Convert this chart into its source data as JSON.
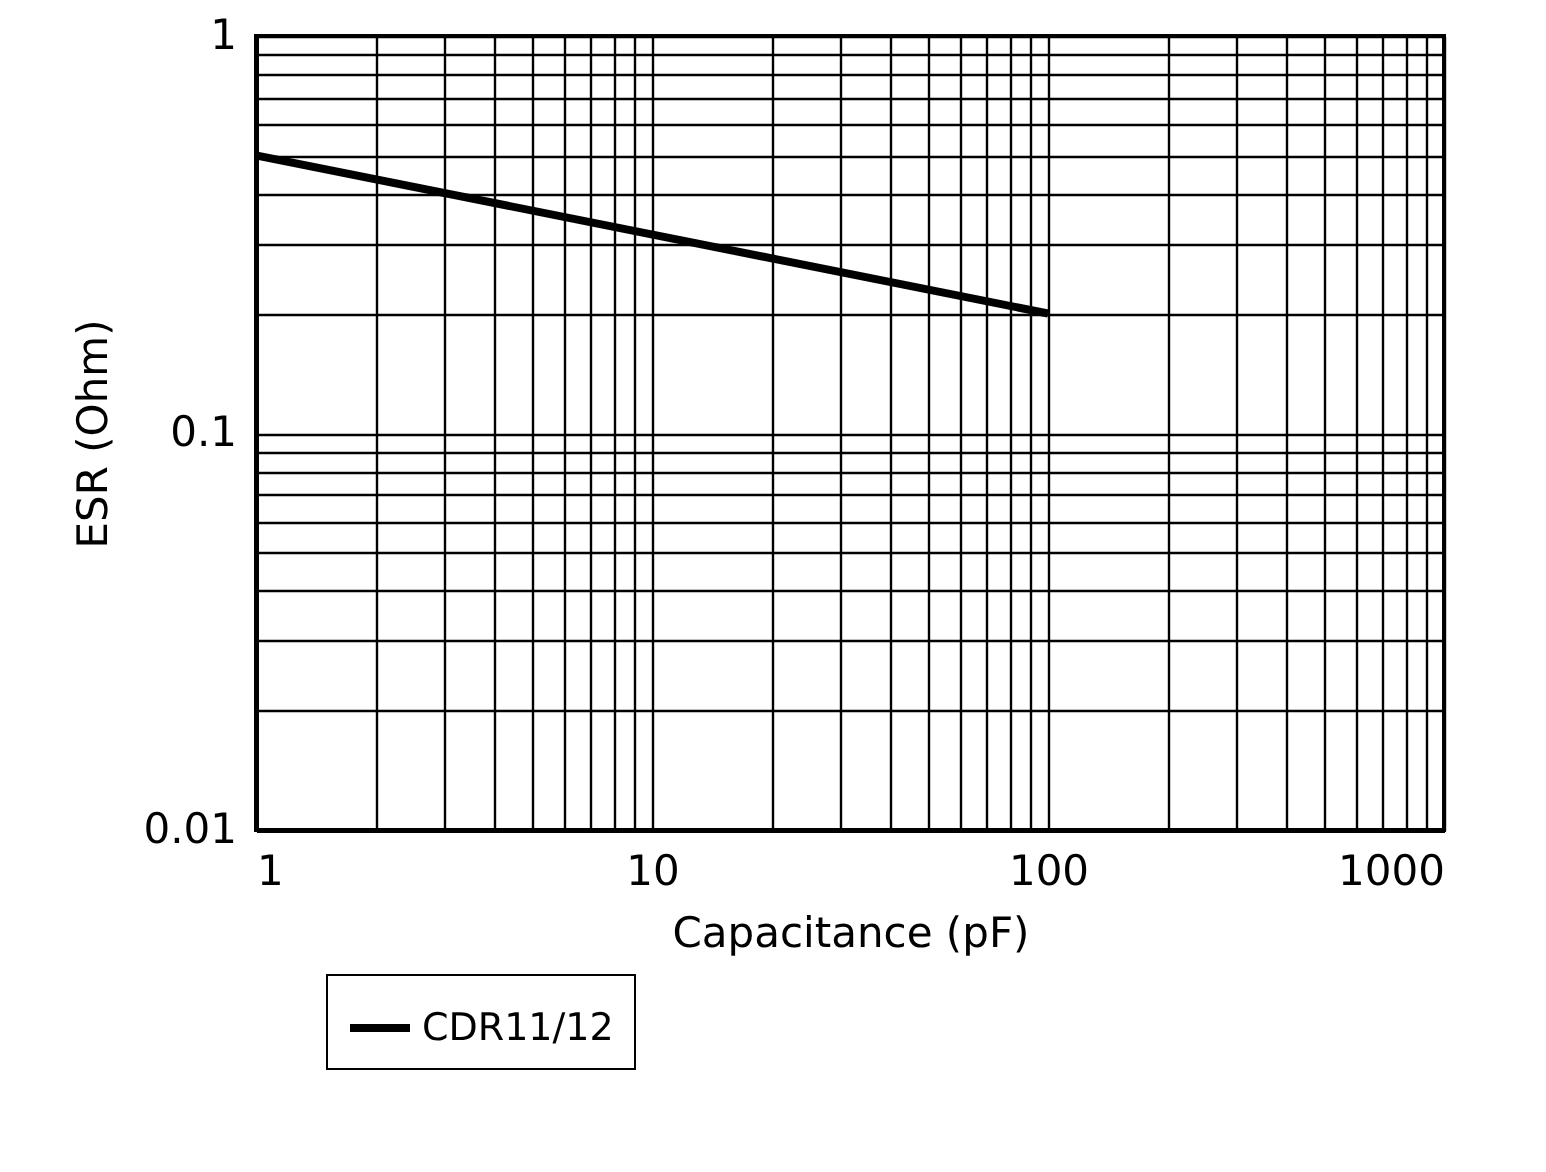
{
  "chart_data": {
    "type": "line",
    "xlabel": "Capacitance (pF)",
    "ylabel": "ESR (Ohm)",
    "x": [
      1,
      100
    ],
    "series": [
      {
        "name": "CDR11/12",
        "color": "#000000",
        "values": [
          0.5,
          0.2
        ]
      }
    ],
    "xlim": [
      1,
      1000
    ],
    "ylim": [
      0.01,
      1
    ],
    "log": "xy",
    "grid": true,
    "legend": "bottom left",
    "xticks": [
      1,
      {
        "value": 2,
        "label": null
      },
      {
        "value": 3,
        "label": null
      },
      {
        "value": 4,
        "label": null
      },
      {
        "value": 5,
        "label": null
      },
      {
        "value": 6,
        "label": null
      },
      {
        "value": 7,
        "label": null
      },
      {
        "value": 8,
        "label": null
      },
      {
        "value": 9,
        "label": null
      },
      10,
      {
        "value": 20,
        "label": null
      },
      {
        "value": 30,
        "label": null
      },
      {
        "value": 40,
        "label": null
      },
      {
        "value": 50,
        "label": null
      },
      {
        "value": 60,
        "label": null
      },
      {
        "value": 70,
        "label": null
      },
      {
        "value": 80,
        "label": null
      },
      {
        "value": 90,
        "label": null
      },
      100,
      {
        "value": 200,
        "label": null
      },
      {
        "value": 300,
        "label": null
      },
      {
        "value": 400,
        "label": null
      },
      {
        "value": 500,
        "label": null
      },
      {
        "value": 600,
        "label": null
      },
      {
        "value": 700,
        "label": null
      },
      {
        "value": 800,
        "label": null
      },
      {
        "value": 900,
        "label": null
      },
      1000
    ],
    "yticks": [
      0.01,
      {
        "value": 0.02,
        "label": null
      },
      {
        "value": 0.03,
        "label": null
      },
      {
        "value": 0.04,
        "label": null
      },
      {
        "value": 0.05,
        "label": null
      },
      {
        "value": 0.06,
        "label": null
      },
      {
        "value": 0.07,
        "label": null
      },
      {
        "value": 0.08,
        "label": null
      },
      {
        "value": 0.09,
        "label": null
      },
      0.1,
      {
        "value": 0.2,
        "label": null
      },
      {
        "value": 0.3,
        "label": null
      },
      {
        "value": 0.4,
        "label": null
      },
      {
        "value": 0.5,
        "label": null
      },
      {
        "value": 0.6,
        "label": null
      },
      {
        "value": 0.7,
        "label": null
      },
      {
        "value": 0.8,
        "label": null
      },
      {
        "value": 0.9,
        "label": null
      },
      1
    ]
  }
}
